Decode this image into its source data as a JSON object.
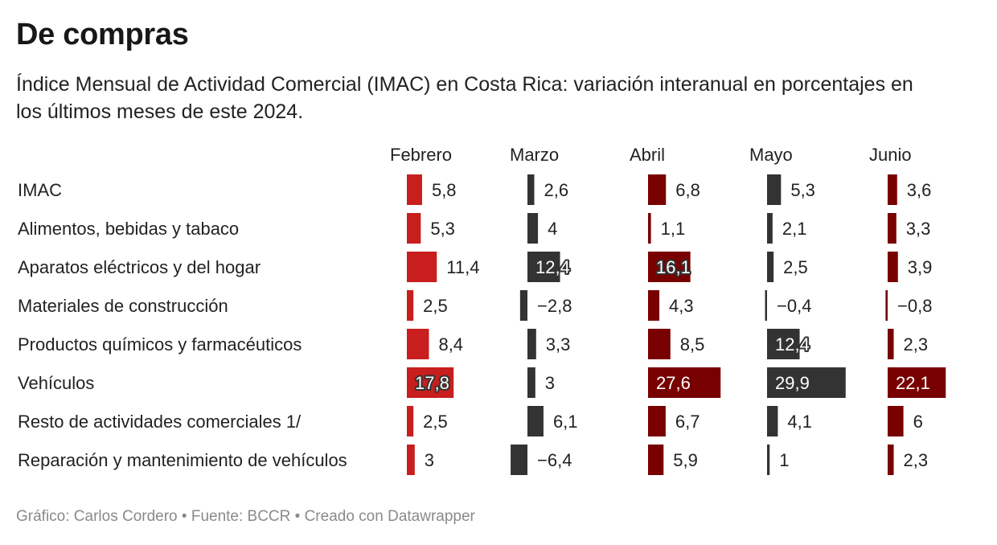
{
  "title": "De compras",
  "subtitle": "Índice Mensual de Actividad Comercial (IMAC) en Costa Rica: variación interanual en porcentajes en los últimos meses de este 2024.",
  "footer": "Gráfico: Carlos Cordero • Fuente: BCCR • Creado con Datawrapper",
  "colors": {
    "red": "#c81e1e",
    "dark": "#333333",
    "darkred": "#780000"
  },
  "chart_data": {
    "type": "bar",
    "layout": "small-multiples-table",
    "categories": [
      "IMAC",
      "Alimentos, bebidas y tabaco",
      "Aparatos eléctricos y del hogar",
      "Materiales de construcción",
      "Productos químicos y farmacéuticos",
      "Vehículos",
      "Resto de actividades comerciales 1/",
      "Reparación y mantenimiento de vehículos"
    ],
    "series": [
      {
        "name": "Febrero",
        "color": "red",
        "values": [
          5.8,
          5.3,
          11.4,
          2.5,
          8.4,
          17.8,
          2.5,
          3
        ],
        "labels": [
          "5,8",
          "5,3",
          "11,4",
          "2,5",
          "8,4",
          "17,8",
          "2,5",
          "3"
        ]
      },
      {
        "name": "Marzo",
        "color": "dark",
        "values": [
          2.6,
          4,
          12.4,
          -2.8,
          3.3,
          3,
          6.1,
          -6.4
        ],
        "labels": [
          "2,6",
          "4",
          "12,4",
          "−2,8",
          "3,3",
          "3",
          "6,1",
          "−6,4"
        ]
      },
      {
        "name": "Abril",
        "color": "darkred",
        "values": [
          6.8,
          1.1,
          16.1,
          4.3,
          8.5,
          27.6,
          6.7,
          5.9
        ],
        "labels": [
          "6,8",
          "1,1",
          "16,1",
          "4,3",
          "8,5",
          "27,6",
          "6,7",
          "5,9"
        ]
      },
      {
        "name": "Mayo",
        "color": "dark",
        "values": [
          5.3,
          2.1,
          2.5,
          -0.4,
          12.4,
          29.9,
          4.1,
          1
        ],
        "labels": [
          "5,3",
          "2,1",
          "2,5",
          "−0,4",
          "12,4",
          "29,9",
          "4,1",
          "1"
        ]
      },
      {
        "name": "Junio",
        "color": "darkred",
        "values": [
          3.6,
          3.3,
          3.9,
          -0.8,
          2.3,
          22.1,
          6,
          2.3
        ],
        "labels": [
          "3,6",
          "3,3",
          "3,9",
          "−0,8",
          "2,3",
          "22,1",
          "6",
          "2,3"
        ]
      }
    ],
    "unit": "%"
  }
}
